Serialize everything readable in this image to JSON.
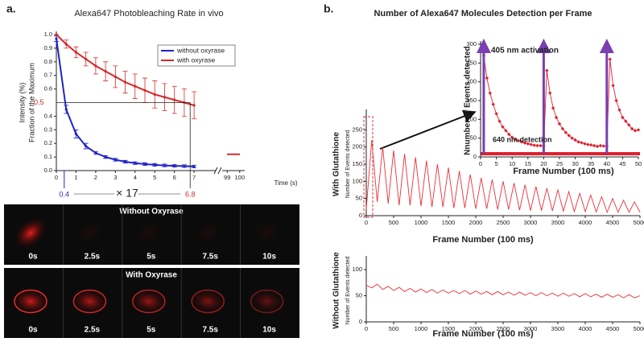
{
  "panels": {
    "a": "a.",
    "b": "b."
  },
  "images": {
    "rows": [
      {
        "title": "Without Oxyrase",
        "times": [
          "0s",
          "2.5s",
          "5s",
          "7.5s",
          "10s"
        ]
      },
      {
        "title": "With Oxyrase",
        "times": [
          "0s",
          "2.5s",
          "5s",
          "7.5s",
          "10s"
        ]
      }
    ]
  },
  "chart_data": [
    {
      "type": "line",
      "title": "Alexa647 Photobleaching Rate in vivo",
      "y_label": "Intensity (%)",
      "y_label_2": "Fraction of the Maximum",
      "x_label": "Time (s)",
      "x": [
        0,
        0.5,
        1,
        1.5,
        2,
        2.5,
        3,
        3.5,
        4,
        4.5,
        5,
        5.5,
        6,
        6.5,
        7
      ],
      "series": [
        {
          "name": "without oxyrase",
          "color": "#2323c8",
          "values": [
            0.97,
            0.45,
            0.27,
            0.18,
            0.13,
            0.1,
            0.08,
            0.065,
            0.055,
            0.048,
            0.042,
            0.038,
            0.035,
            0.033,
            0.03
          ],
          "errors": [
            0.02,
            0.03,
            0.03,
            0.02,
            0.01,
            0.01,
            0.01,
            0.01,
            0.01,
            0.01,
            0.01,
            0.01,
            0.01,
            0.01,
            0.01
          ]
        },
        {
          "name": "with oxyrase",
          "color": "#d42a2a",
          "values": [
            1.0,
            0.93,
            0.87,
            0.82,
            0.77,
            0.73,
            0.69,
            0.65,
            0.62,
            0.59,
            0.56,
            0.54,
            0.52,
            0.5,
            0.48
          ],
          "errors": [
            0,
            0.03,
            0.04,
            0.05,
            0.06,
            0.07,
            0.08,
            0.08,
            0.09,
            0.09,
            0.1,
            0.1,
            0.1,
            0.1,
            0.1
          ]
        }
      ],
      "after_break": {
        "x": 99.5,
        "value": 0.12
      },
      "xlim": [
        0,
        8.1
      ],
      "xticks": [
        0,
        1,
        2,
        3,
        4,
        5,
        6,
        7
      ],
      "xlim_after_break": [
        98.6,
        100.4
      ],
      "xticks_after_break": [
        99,
        100
      ],
      "ylim": [
        0,
        1
      ],
      "yticks": [
        {
          "value": 0,
          "label": "0.0"
        },
        0.1,
        0.2,
        0.3,
        0.4,
        0.6,
        0.7,
        0.8,
        0.9,
        {
          "value": 1,
          "label": "1.0"
        }
      ],
      "annotations": {
        "half_level": 0.5,
        "t_without": 0.4,
        "t_with": 6.8,
        "ratio": "× 17"
      },
      "legend": "upper right"
    },
    {
      "type": "line",
      "title": "Number of Alexa647 Molecules Detection per Frame",
      "y_label": "With Glutathione",
      "y_label_2": "Number of Events detected",
      "x_label": "Frame Number (100 ms)",
      "x": [
        0,
        100,
        200,
        300,
        400,
        500,
        600,
        700,
        800,
        900,
        1000,
        1100,
        1200,
        1300,
        1400,
        1500,
        1600,
        1700,
        1800,
        1900,
        2000,
        2100,
        2200,
        2300,
        2400,
        2500,
        2600,
        2700,
        2800,
        2900,
        3000,
        3100,
        3200,
        3300,
        3400,
        3500,
        3600,
        3700,
        3800,
        3900,
        4000,
        4100,
        4200,
        4300,
        4400,
        4500,
        4600,
        4700,
        4800,
        4900,
        5000
      ],
      "series": [
        {
          "color": "#e8303a",
          "values": [
            20,
            220,
            40,
            200,
            35,
            190,
            30,
            180,
            30,
            170,
            28,
            160,
            25,
            150,
            25,
            140,
            22,
            130,
            22,
            120,
            20,
            110,
            20,
            105,
            18,
            100,
            18,
            95,
            16,
            90,
            15,
            85,
            15,
            80,
            14,
            75,
            13,
            70,
            12,
            65,
            12,
            60,
            11,
            55,
            10,
            50,
            10,
            45,
            10,
            40,
            10
          ]
        }
      ],
      "xlim": [
        0,
        5000
      ],
      "xticks": [
        0,
        500,
        1000,
        1500,
        2000,
        2500,
        3000,
        3500,
        4000,
        4500,
        5000
      ],
      "ylim": [
        0,
        300
      ],
      "yticks": [
        0,
        50,
        100,
        150,
        200,
        250
      ]
    },
    {
      "type": "line",
      "y_label": "Nnumber of Events detected",
      "x_label": "Frame Number (100 ms)",
      "x": [
        1,
        2,
        3,
        4,
        5,
        6,
        7,
        8,
        9,
        10,
        11,
        12,
        13,
        14,
        15,
        16,
        17,
        18,
        19,
        20,
        21,
        22,
        23,
        24,
        25,
        26,
        27,
        28,
        29,
        30,
        31,
        32,
        33,
        34,
        35,
        36,
        37,
        38,
        39,
        40,
        41,
        42,
        43,
        44,
        45,
        46,
        47,
        48,
        49,
        50
      ],
      "series": [
        {
          "color": "#e02030",
          "values": [
            270,
            210,
            170,
            140,
            115,
            95,
            80,
            70,
            60,
            52,
            47,
            43,
            40,
            37,
            35,
            33,
            31,
            30,
            30,
            29,
            230,
            170,
            130,
            105,
            88,
            75,
            65,
            57,
            50,
            45,
            40,
            38,
            35,
            33,
            32,
            30,
            28,
            30,
            29,
            28,
            260,
            190,
            150,
            125,
            105,
            95,
            85,
            75,
            70,
            72
          ]
        }
      ],
      "activation_x": [
        1,
        20,
        40
      ],
      "annotations": {
        "activation": "405 nm activation",
        "detection": "640 nm detection"
      },
      "xlim": [
        0,
        50
      ],
      "xticks": [
        0,
        5,
        10,
        15,
        20,
        25,
        30,
        35,
        40,
        45,
        50
      ],
      "ylim": [
        0,
        300
      ],
      "yticks": [
        0,
        50,
        100,
        150,
        200,
        250,
        300
      ]
    },
    {
      "type": "line",
      "y_label": "Without Glutathione",
      "y_label_2": "Number of Events detected",
      "x_label": "Frame Number (100 ms)",
      "x": [
        0,
        100,
        200,
        300,
        400,
        500,
        600,
        700,
        800,
        900,
        1000,
        1100,
        1200,
        1300,
        1400,
        1500,
        1600,
        1700,
        1800,
        1900,
        2000,
        2100,
        2200,
        2300,
        2400,
        2500,
        2600,
        2700,
        2800,
        2900,
        3000,
        3100,
        3200,
        3300,
        3400,
        3500,
        3600,
        3700,
        3800,
        3900,
        4000,
        4100,
        4200,
        4300,
        4400,
        4500,
        4600,
        4700,
        4800,
        4900,
        5000
      ],
      "series": [
        {
          "color": "#e8303a",
          "values": [
            70,
            65,
            72,
            62,
            68,
            60,
            66,
            58,
            64,
            57,
            63,
            56,
            62,
            55,
            61,
            55,
            60,
            54,
            60,
            53,
            59,
            53,
            58,
            52,
            58,
            52,
            57,
            51,
            57,
            51,
            56,
            50,
            56,
            50,
            55,
            49,
            55,
            49,
            54,
            48,
            54,
            48,
            53,
            47,
            53,
            47,
            52,
            46,
            52,
            46,
            50
          ]
        }
      ],
      "xlim": [
        0,
        5000
      ],
      "xticks": [
        0,
        500,
        1000,
        1500,
        2000,
        2500,
        3000,
        3500,
        4000,
        4500,
        5000
      ],
      "ylim": [
        0,
        120
      ],
      "yticks": [
        0,
        50,
        100
      ]
    }
  ]
}
